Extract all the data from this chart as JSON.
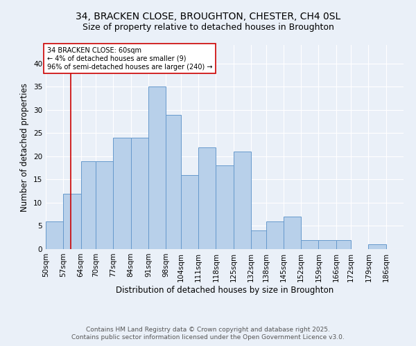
{
  "title_line1": "34, BRACKEN CLOSE, BROUGHTON, CHESTER, CH4 0SL",
  "title_line2": "Size of property relative to detached houses in Broughton",
  "xlabel": "Distribution of detached houses by size in Broughton",
  "ylabel": "Number of detached properties",
  "bin_edges": [
    50,
    57,
    64,
    70,
    77,
    84,
    91,
    98,
    104,
    111,
    118,
    125,
    132,
    138,
    145,
    152,
    159,
    166,
    172,
    179,
    186
  ],
  "bar_heights": [
    6,
    12,
    19,
    19,
    24,
    24,
    35,
    29,
    16,
    22,
    18,
    21,
    4,
    6,
    7,
    2,
    2,
    2,
    0,
    1
  ],
  "bar_color": "#b8d0ea",
  "bar_edge_color": "#6699cc",
  "red_line_x": 60,
  "red_line_color": "#cc0000",
  "annotation_text": "34 BRACKEN CLOSE: 60sqm\n← 4% of detached houses are smaller (9)\n96% of semi-detached houses are larger (240) →",
  "annotation_box_color": "#ffffff",
  "annotation_box_edge": "#cc0000",
  "ylim": [
    0,
    44
  ],
  "yticks": [
    0,
    5,
    10,
    15,
    20,
    25,
    30,
    35,
    40
  ],
  "xtick_labels": [
    "50sqm",
    "57sqm",
    "64sqm",
    "70sqm",
    "77sqm",
    "84sqm",
    "91sqm",
    "98sqm",
    "104sqm",
    "111sqm",
    "118sqm",
    "125sqm",
    "132sqm",
    "138sqm",
    "145sqm",
    "152sqm",
    "159sqm",
    "166sqm",
    "172sqm",
    "179sqm",
    "186sqm"
  ],
  "footnote1": "Contains HM Land Registry data © Crown copyright and database right 2025.",
  "footnote2": "Contains public sector information licensed under the Open Government Licence v3.0.",
  "background_color": "#eaf0f8",
  "grid_color": "#ffffff",
  "title_fontsize": 10,
  "subtitle_fontsize": 9,
  "axis_label_fontsize": 8.5,
  "tick_fontsize": 7.5,
  "footnote_fontsize": 6.5
}
